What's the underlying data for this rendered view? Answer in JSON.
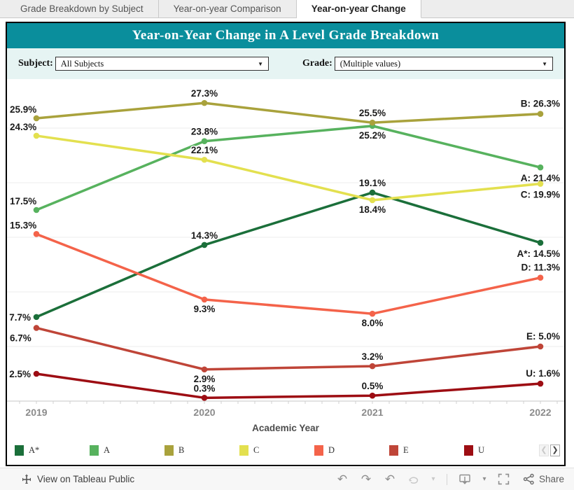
{
  "tabs": [
    {
      "label": "Grade Breakdown by Subject",
      "active": false
    },
    {
      "label": "Year-on-year Comparison",
      "active": false
    },
    {
      "label": "Year-on-year Change",
      "active": true
    }
  ],
  "header": {
    "title": "Year-on-Year Change in A Level Grade Breakdown"
  },
  "filters": {
    "subject_label": "Subject:",
    "subject_value": "All Subjects",
    "grade_label": "Grade:",
    "grade_value": "(Multiple values)",
    "dropdown_caret": "▼"
  },
  "chart_data": {
    "type": "line",
    "x": [
      "2019",
      "2020",
      "2021",
      "2022"
    ],
    "xlabel": "Academic Year",
    "ylim": [
      0,
      28.5
    ],
    "grid": "horizontal",
    "gridline_step_percent": 5,
    "legend_position": "bottom",
    "value_label_suffix": "%",
    "series": [
      {
        "name": "A*",
        "color": "#1b6f3a",
        "values": [
          7.7,
          14.3,
          19.1,
          14.5
        ],
        "label_pos": [
          "left",
          "above",
          "above",
          "below"
        ],
        "end_label": "A*: 14.5%"
      },
      {
        "name": "A",
        "color": "#57b25e",
        "values": [
          17.5,
          23.8,
          25.2,
          21.4
        ],
        "label_pos": [
          "above",
          "above",
          "below",
          "below"
        ],
        "end_label": "A: 21.4%"
      },
      {
        "name": "B",
        "color": "#a9a23c",
        "values": [
          25.9,
          27.3,
          25.5,
          26.3
        ],
        "label_pos": [
          "above",
          "above",
          "above",
          "above"
        ],
        "end_label": "B: 26.3%"
      },
      {
        "name": "C",
        "color": "#e3e04f",
        "values": [
          24.3,
          22.1,
          18.4,
          19.9
        ],
        "label_pos": [
          "above",
          "above",
          "below",
          "below"
        ],
        "end_label": "C: 19.9%"
      },
      {
        "name": "D",
        "color": "#f4634a",
        "values": [
          15.3,
          9.3,
          8.0,
          11.3
        ],
        "label_pos": [
          "above",
          "below",
          "below",
          "above"
        ],
        "end_label": "D: 11.3%"
      },
      {
        "name": "E",
        "color": "#bf4538",
        "values": [
          6.7,
          2.9,
          3.2,
          5.0
        ],
        "label_pos": [
          "below",
          "below",
          "above",
          "above"
        ],
        "end_label": "E: 5.0%"
      },
      {
        "name": "U",
        "color": "#9d0d13",
        "values": [
          2.5,
          0.3,
          0.5,
          1.6
        ],
        "label_pos": [
          "left",
          "above",
          "above",
          "above"
        ],
        "end_label": "U: 1.6%"
      }
    ]
  },
  "legend": {
    "pager_prev": "❮",
    "pager_next": "❯"
  },
  "footer": {
    "view_on_text": "View on Tableau Public",
    "share_label": "Share",
    "icons": [
      "tableau-logo",
      "undo",
      "redo",
      "revert",
      "refresh",
      "caret-down",
      "download",
      "fullscreen",
      "share"
    ],
    "glyphs": {
      "undo": "↶",
      "redo": "↷",
      "revert": "↶",
      "caret_down": "▾"
    }
  },
  "colors": {
    "title_bar": "#0a8e9c",
    "filter_band": "#e6f4f3",
    "dashboard_border": "#000000",
    "gridline": "#ececec",
    "axis_line": "#d2d2d2",
    "year_label": "#8b8b8b",
    "axis_title": "#4d4d4d",
    "value_label": "#1a1a1a"
  }
}
